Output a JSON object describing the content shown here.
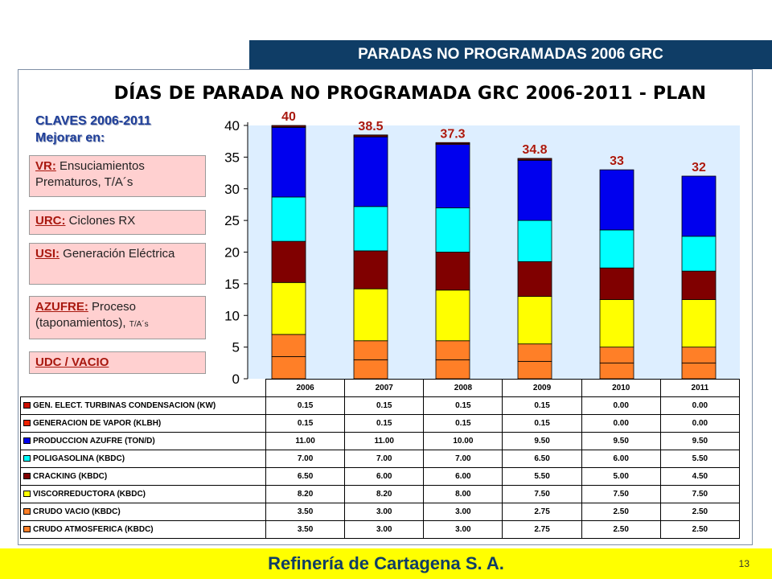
{
  "header": {
    "title": "PARADAS NO PROGRAMADAS 2006 GRC"
  },
  "chart_title": "DÍAS DE PARADA NO PROGRAMADA GRC 2006-2011 - PLAN",
  "claves": {
    "line1": "CLAVES 2006-2011",
    "line2": "Mejorar en:"
  },
  "legend_boxes": [
    {
      "key": "VR:",
      "text": " Ensuciamientos Prematuros, T/A´s",
      "small": ""
    },
    {
      "key": "URC:",
      "text": " Ciclones RX",
      "small": ""
    },
    {
      "key": "USI:",
      "text": " Generación Eléctrica",
      "small": ""
    },
    {
      "key": "AZUFRE:",
      "text": " Proceso (taponamientos), ",
      "small": "T/A´s"
    },
    {
      "key": "UDC / VACIO",
      "text": "",
      "small": ""
    }
  ],
  "footer": {
    "company": "Refinería de Cartagena S. A.",
    "page": "13"
  },
  "colors": {
    "background_plot": "#ddeeff",
    "label_red": "#a8180f"
  },
  "chart_data": {
    "type": "bar",
    "stacked": true,
    "title": "DÍAS DE PARADA NO PROGRAMADA GRC 2006-2011 - PLAN",
    "xlabel": "",
    "ylabel": "",
    "ylim": [
      0,
      40
    ],
    "yticks": [
      0,
      5,
      10,
      15,
      20,
      25,
      30,
      35,
      40
    ],
    "categories": [
      "2006",
      "2007",
      "2008",
      "2009",
      "2010",
      "2011"
    ],
    "totals": [
      "40",
      "38.5",
      "37.3",
      "34.8",
      "33",
      "32"
    ],
    "series": [
      {
        "name": "CRUDO ATMOSFERICA (KBDC)",
        "color": "#ff7f27",
        "values": [
          3.5,
          3.0,
          3.0,
          2.75,
          2.5,
          2.5
        ],
        "labels": [
          "3.50",
          "3.00",
          "3.00",
          "2.75",
          "2.50",
          "2.50"
        ]
      },
      {
        "name": "CRUDO VACIO (KBDC)",
        "color": "#ff7f27",
        "values": [
          3.5,
          3.0,
          3.0,
          2.75,
          2.5,
          2.5
        ],
        "labels": [
          "3.50",
          "3.00",
          "3.00",
          "2.75",
          "2.50",
          "2.50"
        ]
      },
      {
        "name": "VISCORREDUCTORA (KBDC)",
        "color": "#ffff00",
        "values": [
          8.2,
          8.2,
          8.0,
          7.5,
          7.5,
          7.5
        ],
        "labels": [
          "8.20",
          "8.20",
          "8.00",
          "7.50",
          "7.50",
          "7.50"
        ]
      },
      {
        "name": "CRACKING (KBDC)",
        "color": "#800000",
        "values": [
          6.5,
          6.0,
          6.0,
          5.5,
          5.0,
          4.5
        ],
        "labels": [
          "6.50",
          "6.00",
          "6.00",
          "5.50",
          "5.00",
          "4.50"
        ]
      },
      {
        "name": "POLIGASOLINA (KBDC)",
        "color": "#00ffff",
        "values": [
          7.0,
          7.0,
          7.0,
          6.5,
          6.0,
          5.5
        ],
        "labels": [
          "7.00",
          "7.00",
          "7.00",
          "6.50",
          "6.00",
          "5.50"
        ]
      },
      {
        "name": "PRODUCCION AZUFRE (TON/D)",
        "color": "#0000ee",
        "values": [
          11.0,
          11.0,
          10.0,
          9.5,
          9.5,
          9.5
        ],
        "labels": [
          "11.00",
          "11.00",
          "10.00",
          "9.50",
          "9.50",
          "9.50"
        ]
      },
      {
        "name": "GENERACION DE VAPOR (KLBH)",
        "color": "#ee2200",
        "values": [
          0.15,
          0.15,
          0.15,
          0.15,
          0.0,
          0.0
        ],
        "labels": [
          "0.15",
          "0.15",
          "0.15",
          "0.15",
          "0.00",
          "0.00"
        ]
      },
      {
        "name": "GEN. ELECT. TURBINAS CONDENSACION (KW)",
        "color": "#cc1100",
        "values": [
          0.15,
          0.15,
          0.15,
          0.15,
          0.0,
          0.0
        ],
        "labels": [
          "0.15",
          "0.15",
          "0.15",
          "0.15",
          "0.00",
          "0.00"
        ]
      }
    ]
  }
}
